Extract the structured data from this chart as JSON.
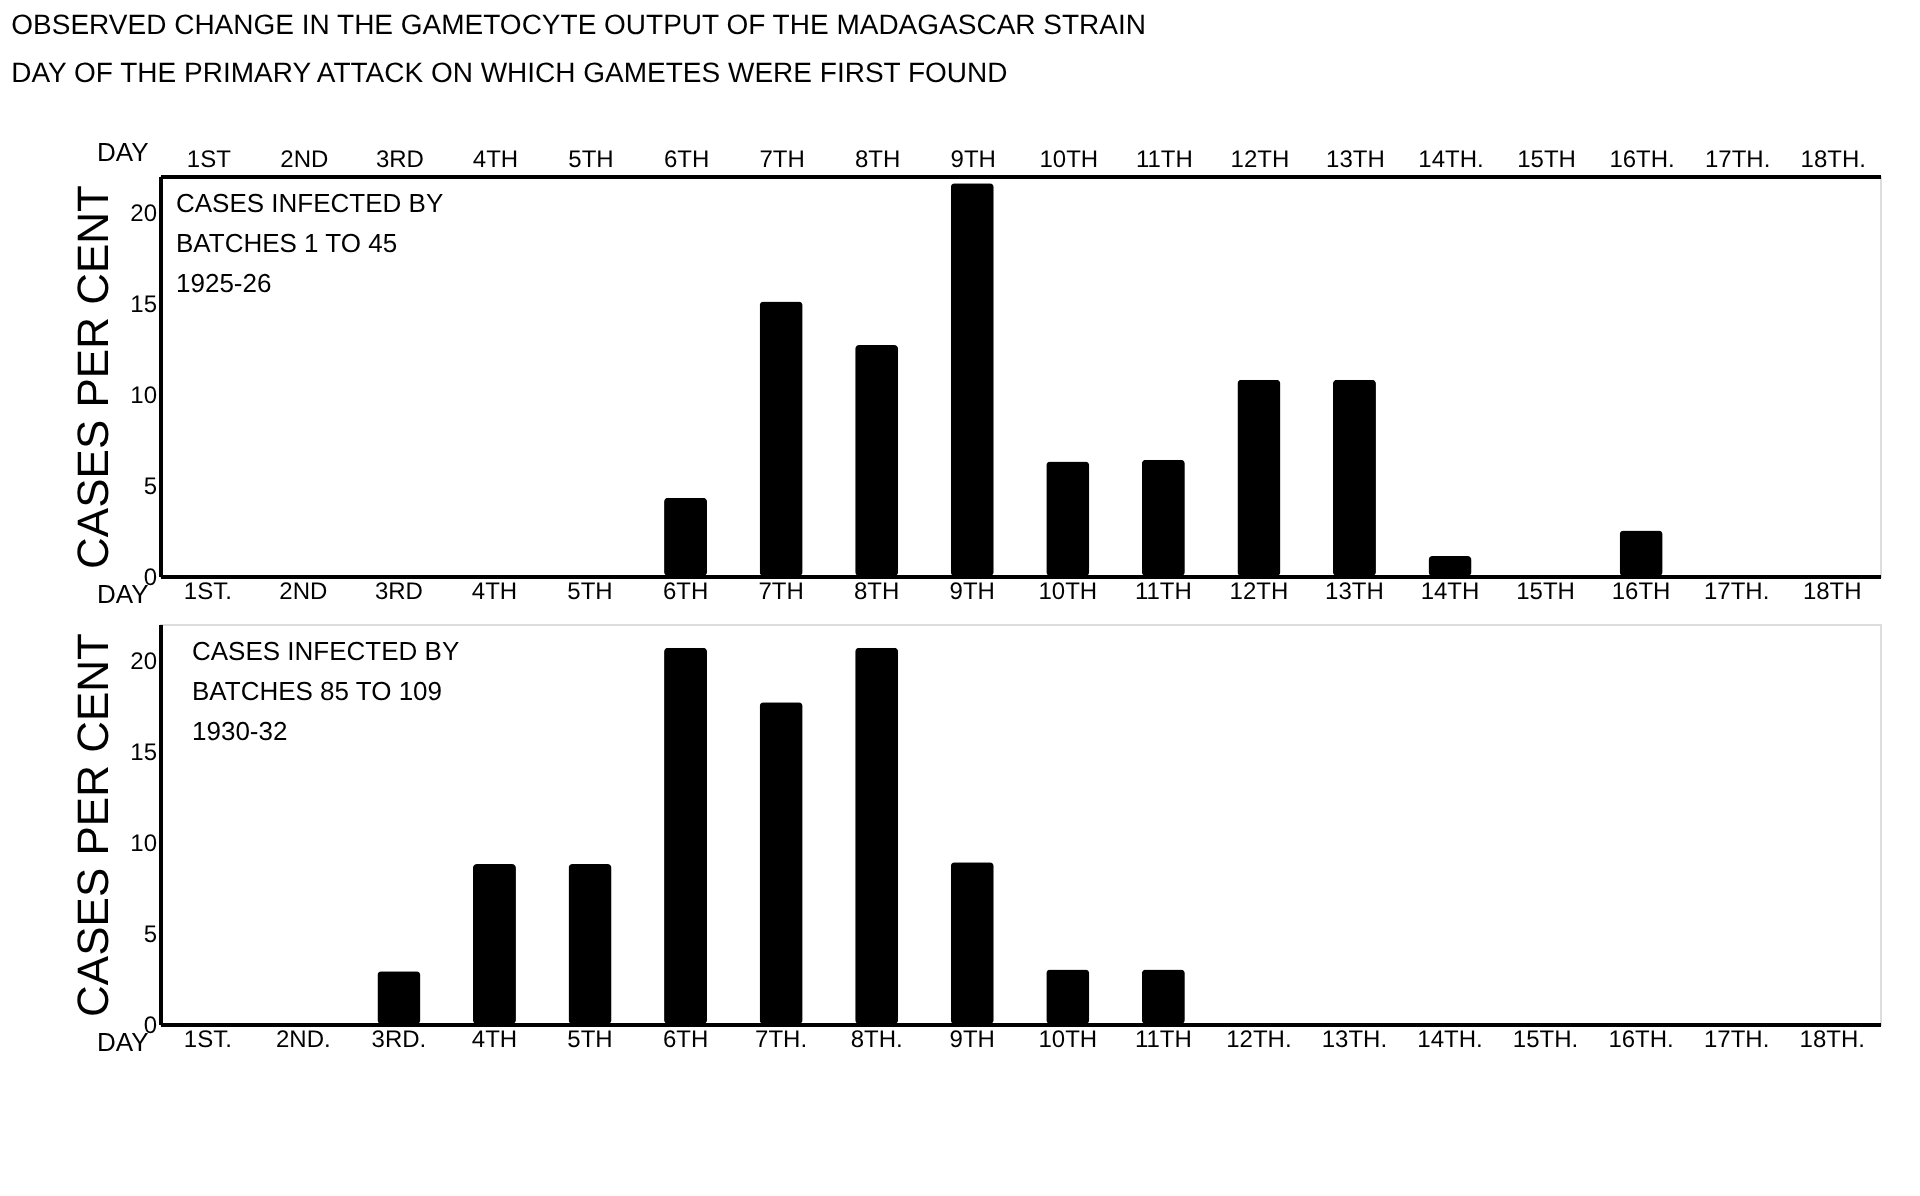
{
  "chart_data": [
    {
      "type": "bar",
      "title": "OBSERVED CHANGE IN THE GAMETOCYTE OUTPUT OF THE MADAGASCAR STRAIN",
      "subtitle": "DAY OF THE PRIMARY ATTACK ON WHICH GAMETES WERE FIRST FOUND",
      "x2label": "DAY",
      "x2lim": [
        0.5,
        18.5
      ],
      "x2ticks": [
        {
          "value": 1,
          "label": "1ST"
        },
        {
          "value": 2,
          "label": "2ND"
        },
        {
          "value": 3,
          "label": "3RD"
        },
        {
          "value": 4,
          "label": "4TH"
        },
        {
          "value": 5,
          "label": "5TH"
        },
        {
          "value": 6,
          "label": "6TH"
        },
        {
          "value": 7,
          "label": "7TH"
        },
        {
          "value": 8,
          "label": "8TH"
        },
        {
          "value": 9,
          "label": "9TH"
        },
        {
          "value": 10,
          "label": "10TH"
        },
        {
          "value": 11,
          "label": "11TH"
        },
        {
          "value": 12,
          "label": "12TH"
        },
        {
          "value": 13,
          "label": "13TH"
        },
        {
          "value": 14,
          "label": "14TH."
        },
        {
          "value": 15,
          "label": "15TH"
        },
        {
          "value": 16,
          "label": "16TH."
        },
        {
          "value": 17,
          "label": "17TH."
        },
        {
          "value": 18,
          "label": "18TH."
        }
      ],
      "xlabel": "DAY",
      "categories": [
        "1ST.",
        "2ND",
        "3RD",
        "4TH",
        "5TH",
        "6TH",
        "7TH",
        "8TH",
        "9TH",
        "10TH",
        "11TH",
        "12TH",
        "13TH",
        "14TH",
        "15TH",
        "16TH",
        "17TH.",
        "18TH"
      ],
      "ylabel": "CASES PER CENT",
      "values": [
        0,
        0,
        0,
        0,
        0,
        4.3,
        15.1,
        12.7,
        21.6,
        6.3,
        6.4,
        10.8,
        10.8,
        1.1,
        0,
        2.5,
        0,
        0
      ],
      "color": "#000000",
      "ylim": [
        0,
        22
      ],
      "yticks": [
        0,
        5,
        10,
        15,
        20
      ],
      "grid": false,
      "annotations": [
        "CASES INFECTED BY",
        "BATCHES 1 TO 45",
        "1925-26"
      ]
    },
    {
      "type": "bar",
      "xlabel": "DAY",
      "categories": [
        "1ST.",
        "2ND.",
        "3RD.",
        "4TH",
        "5TH",
        "6TH",
        "7TH.",
        "8TH.",
        "9TH",
        "10TH",
        "11TH",
        "12TH.",
        "13TH.",
        "14TH.",
        "15TH.",
        "16TH.",
        "17TH.",
        "18TH."
      ],
      "ylabel": "CASES PER CENT",
      "values": [
        0,
        0,
        2.9,
        8.8,
        8.8,
        20.7,
        17.7,
        20.7,
        8.9,
        3.0,
        3.0,
        0,
        0,
        0,
        0,
        0,
        0,
        0
      ],
      "color": "#000000",
      "ylim": [
        0,
        22
      ],
      "yticks": [
        0,
        5,
        10,
        15,
        20
      ],
      "grid": false,
      "annotations": [
        "CASES INFECTED BY",
        "BATCHES 85 TO 109",
        "1930-32"
      ]
    }
  ]
}
